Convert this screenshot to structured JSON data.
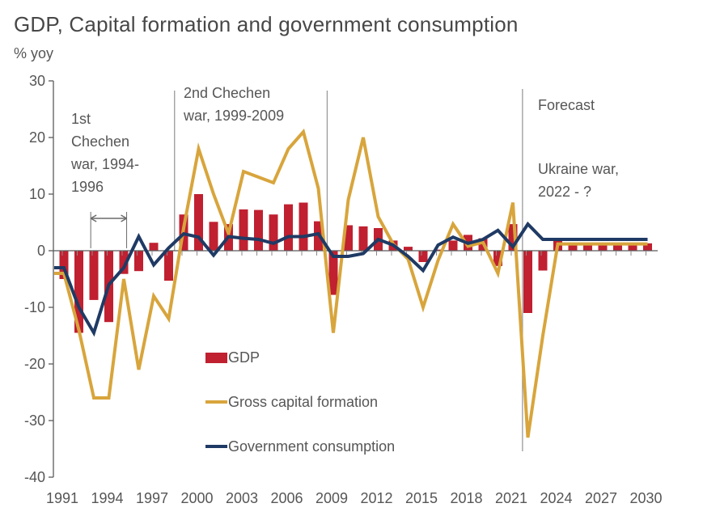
{
  "chart_data": {
    "type": "bar",
    "title": "GDP, Capital formation and government consumption",
    "ylabel": "% yoy",
    "xlabel": "",
    "ylim": [
      -40,
      30
    ],
    "yticks": [
      30,
      20,
      10,
      0,
      -10,
      -20,
      -30,
      -40
    ],
    "xtick_years": [
      1991,
      1994,
      1997,
      2000,
      2003,
      2006,
      2009,
      2012,
      2015,
      2018,
      2021,
      2024,
      2027,
      2030
    ],
    "x": [
      1991,
      1992,
      1993,
      1994,
      1995,
      1996,
      1997,
      1998,
      1999,
      2000,
      2001,
      2002,
      2003,
      2004,
      2005,
      2006,
      2007,
      2008,
      2009,
      2010,
      2011,
      2012,
      2013,
      2014,
      2015,
      2016,
      2017,
      2018,
      2019,
      2020,
      2021,
      2022,
      2023,
      2024,
      2025,
      2026,
      2027,
      2028,
      2029,
      2030
    ],
    "series": [
      {
        "name": "GDP",
        "type": "bar",
        "color": "#c02030",
        "values": [
          -5,
          -14.5,
          -8.7,
          -12.6,
          -4.1,
          -3.6,
          1.4,
          -5.3,
          6.4,
          10,
          5.1,
          4.7,
          7.3,
          7.2,
          6.4,
          8.2,
          8.5,
          5.2,
          -7.8,
          4.5,
          4.3,
          4,
          1.8,
          0.7,
          -2,
          0.2,
          1.8,
          2.8,
          2.2,
          -2.7,
          4.7,
          -11,
          -3.5,
          2,
          1.3,
          1.3,
          1.3,
          1.3,
          1.3,
          1.3
        ]
      },
      {
        "name": "Gross capital formation",
        "type": "line",
        "color": "#d8a53c",
        "values": [
          -4,
          -14,
          -26,
          -26,
          -5,
          -21,
          -8,
          -12,
          4,
          18,
          10,
          3,
          14,
          13,
          12,
          18,
          21,
          11,
          -14.5,
          9,
          20,
          6,
          1.2,
          -1.5,
          -10,
          -1.7,
          4.7,
          0.8,
          1.5,
          -4,
          8.5,
          -33,
          -15,
          1.2,
          1.2,
          1.2,
          1.2,
          1.2,
          1.2,
          1.2
        ]
      },
      {
        "name": "Government consumption",
        "type": "line",
        "color": "#1f3a64",
        "values": [
          -3,
          -10,
          -14.5,
          -6,
          -3,
          2.5,
          -2.5,
          0.5,
          3,
          2.4,
          -0.8,
          2.5,
          2.2,
          2,
          1.3,
          2.5,
          2.5,
          3,
          -1,
          -1,
          -0.5,
          2,
          1,
          -1,
          -3.5,
          1,
          2.4,
          1.3,
          2,
          3.6,
          0.7,
          4.7,
          2,
          2,
          2,
          2,
          2,
          2,
          2,
          2
        ]
      }
    ],
    "grid": false,
    "legend_position": "inside-bottom-left",
    "war_markers": [
      {
        "year": 1998.5,
        "tall": false
      },
      {
        "year": 2008.7,
        "tall": false
      },
      {
        "year": 2021.75,
        "tall": true
      }
    ],
    "war_span_arrow": {
      "from_year": 1992.9,
      "to_year": 1995.3
    },
    "axis_color": "#5a5a5a",
    "marker_line_color": "#9a9a9a"
  },
  "annotations": {
    "chechen1": "1st\nChechen\nwar, 1994-\n1996",
    "chechen2": "2nd Chechen\nwar, 1999-2009",
    "forecast": "Forecast",
    "ukraine": "Ukraine war,\n2022 - ?"
  },
  "legend": {
    "items": [
      {
        "label": "GDP"
      },
      {
        "label": "Gross capital formation"
      },
      {
        "label": "Government consumption"
      }
    ]
  }
}
